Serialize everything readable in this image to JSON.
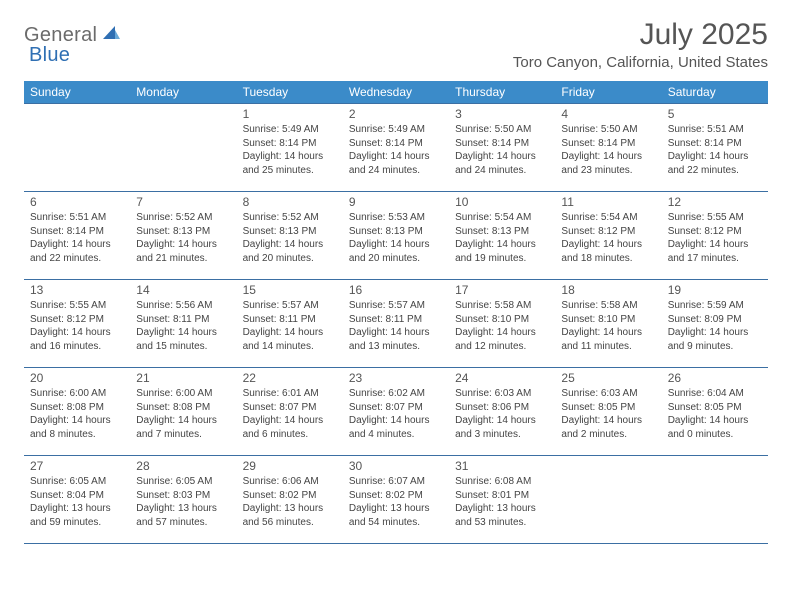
{
  "brand": {
    "text_general": "General",
    "text_blue": "Blue",
    "icon_fill": "#2f6fb3"
  },
  "title": "July 2025",
  "subtitle": "Toro Canyon, California, United States",
  "colors": {
    "header_bg": "#3b8bc9",
    "header_text": "#ffffff",
    "cell_border": "#3b6fa3",
    "body_text": "#444444",
    "daynum_text": "#555555",
    "title_text": "#555555",
    "logo_gray": "#6b6b6b",
    "logo_blue": "#2f6fb3",
    "background": "#ffffff"
  },
  "typography": {
    "title_fontsize": 30,
    "subtitle_fontsize": 15,
    "weekday_fontsize": 12,
    "daynum_fontsize": 12,
    "body_fontsize": 10,
    "font_family": "Arial"
  },
  "weekdays": [
    "Sunday",
    "Monday",
    "Tuesday",
    "Wednesday",
    "Thursday",
    "Friday",
    "Saturday"
  ],
  "weeks": [
    [
      null,
      null,
      {
        "n": "1",
        "sr": "5:49 AM",
        "ss": "8:14 PM",
        "dl": "14 hours and 25 minutes."
      },
      {
        "n": "2",
        "sr": "5:49 AM",
        "ss": "8:14 PM",
        "dl": "14 hours and 24 minutes."
      },
      {
        "n": "3",
        "sr": "5:50 AM",
        "ss": "8:14 PM",
        "dl": "14 hours and 24 minutes."
      },
      {
        "n": "4",
        "sr": "5:50 AM",
        "ss": "8:14 PM",
        "dl": "14 hours and 23 minutes."
      },
      {
        "n": "5",
        "sr": "5:51 AM",
        "ss": "8:14 PM",
        "dl": "14 hours and 22 minutes."
      }
    ],
    [
      {
        "n": "6",
        "sr": "5:51 AM",
        "ss": "8:14 PM",
        "dl": "14 hours and 22 minutes."
      },
      {
        "n": "7",
        "sr": "5:52 AM",
        "ss": "8:13 PM",
        "dl": "14 hours and 21 minutes."
      },
      {
        "n": "8",
        "sr": "5:52 AM",
        "ss": "8:13 PM",
        "dl": "14 hours and 20 minutes."
      },
      {
        "n": "9",
        "sr": "5:53 AM",
        "ss": "8:13 PM",
        "dl": "14 hours and 20 minutes."
      },
      {
        "n": "10",
        "sr": "5:54 AM",
        "ss": "8:13 PM",
        "dl": "14 hours and 19 minutes."
      },
      {
        "n": "11",
        "sr": "5:54 AM",
        "ss": "8:12 PM",
        "dl": "14 hours and 18 minutes."
      },
      {
        "n": "12",
        "sr": "5:55 AM",
        "ss": "8:12 PM",
        "dl": "14 hours and 17 minutes."
      }
    ],
    [
      {
        "n": "13",
        "sr": "5:55 AM",
        "ss": "8:12 PM",
        "dl": "14 hours and 16 minutes."
      },
      {
        "n": "14",
        "sr": "5:56 AM",
        "ss": "8:11 PM",
        "dl": "14 hours and 15 minutes."
      },
      {
        "n": "15",
        "sr": "5:57 AM",
        "ss": "8:11 PM",
        "dl": "14 hours and 14 minutes."
      },
      {
        "n": "16",
        "sr": "5:57 AM",
        "ss": "8:11 PM",
        "dl": "14 hours and 13 minutes."
      },
      {
        "n": "17",
        "sr": "5:58 AM",
        "ss": "8:10 PM",
        "dl": "14 hours and 12 minutes."
      },
      {
        "n": "18",
        "sr": "5:58 AM",
        "ss": "8:10 PM",
        "dl": "14 hours and 11 minutes."
      },
      {
        "n": "19",
        "sr": "5:59 AM",
        "ss": "8:09 PM",
        "dl": "14 hours and 9 minutes."
      }
    ],
    [
      {
        "n": "20",
        "sr": "6:00 AM",
        "ss": "8:08 PM",
        "dl": "14 hours and 8 minutes."
      },
      {
        "n": "21",
        "sr": "6:00 AM",
        "ss": "8:08 PM",
        "dl": "14 hours and 7 minutes."
      },
      {
        "n": "22",
        "sr": "6:01 AM",
        "ss": "8:07 PM",
        "dl": "14 hours and 6 minutes."
      },
      {
        "n": "23",
        "sr": "6:02 AM",
        "ss": "8:07 PM",
        "dl": "14 hours and 4 minutes."
      },
      {
        "n": "24",
        "sr": "6:03 AM",
        "ss": "8:06 PM",
        "dl": "14 hours and 3 minutes."
      },
      {
        "n": "25",
        "sr": "6:03 AM",
        "ss": "8:05 PM",
        "dl": "14 hours and 2 minutes."
      },
      {
        "n": "26",
        "sr": "6:04 AM",
        "ss": "8:05 PM",
        "dl": "14 hours and 0 minutes."
      }
    ],
    [
      {
        "n": "27",
        "sr": "6:05 AM",
        "ss": "8:04 PM",
        "dl": "13 hours and 59 minutes."
      },
      {
        "n": "28",
        "sr": "6:05 AM",
        "ss": "8:03 PM",
        "dl": "13 hours and 57 minutes."
      },
      {
        "n": "29",
        "sr": "6:06 AM",
        "ss": "8:02 PM",
        "dl": "13 hours and 56 minutes."
      },
      {
        "n": "30",
        "sr": "6:07 AM",
        "ss": "8:02 PM",
        "dl": "13 hours and 54 minutes."
      },
      {
        "n": "31",
        "sr": "6:08 AM",
        "ss": "8:01 PM",
        "dl": "13 hours and 53 minutes."
      },
      null,
      null
    ]
  ],
  "labels": {
    "sunrise": "Sunrise:",
    "sunset": "Sunset:",
    "daylight": "Daylight:"
  }
}
